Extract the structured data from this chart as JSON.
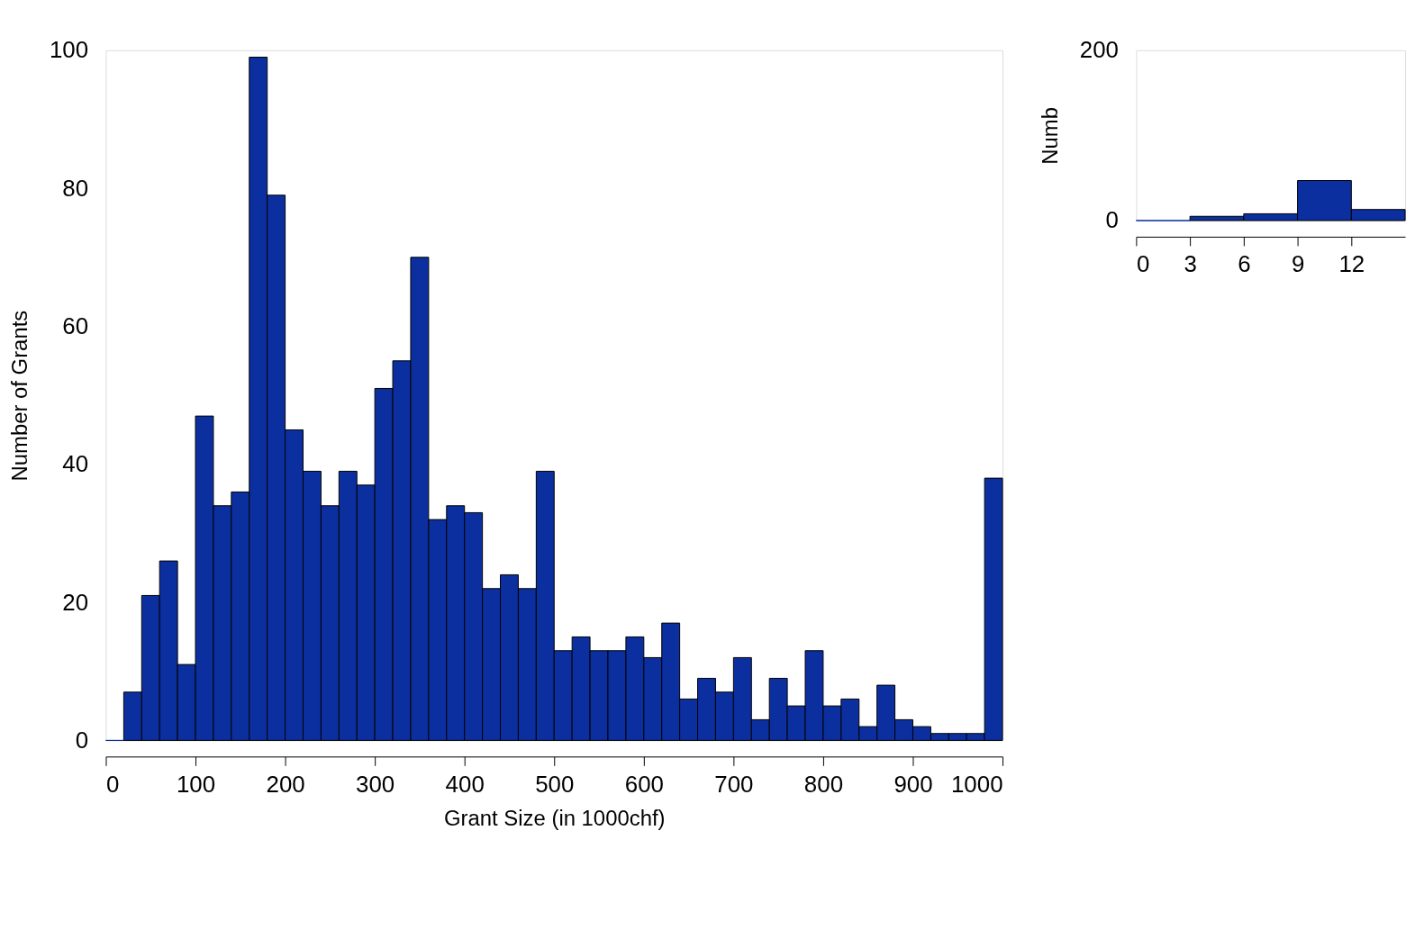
{
  "chart_data": [
    {
      "type": "histogram",
      "xlabel": "Grant Size (in 1000chf)",
      "ylabel": "Number of Grants",
      "color": "#0b2f9f",
      "bins": [
        0,
        20,
        40,
        60,
        80,
        100,
        120,
        140,
        160,
        180,
        200,
        220,
        240,
        260,
        280,
        300,
        320,
        340,
        360,
        380,
        400,
        420,
        440,
        460,
        480,
        500,
        520,
        540,
        560,
        580,
        600,
        620,
        640,
        660,
        680,
        700,
        720,
        740,
        760,
        780,
        800,
        820,
        840,
        860,
        880,
        900,
        920,
        940,
        960,
        980,
        1000
      ],
      "values": [
        0,
        7,
        21,
        26,
        11,
        47,
        34,
        36,
        99,
        79,
        45,
        39,
        34,
        39,
        37,
        51,
        55,
        70,
        32,
        34,
        33,
        22,
        24,
        22,
        39,
        13,
        15,
        13,
        13,
        15,
        12,
        17,
        6,
        9,
        7,
        12,
        3,
        9,
        5,
        13,
        5,
        6,
        2,
        8,
        3,
        2,
        1,
        1,
        1,
        38
      ],
      "xlim": [
        0,
        1000
      ],
      "xticks": [
        0,
        100,
        200,
        300,
        400,
        500,
        600,
        700,
        800,
        900,
        1000
      ],
      "ylim": [
        0,
        100
      ],
      "yticks": [
        0,
        20,
        40,
        60,
        80,
        100
      ],
      "grid": false
    },
    {
      "type": "histogram",
      "ylabel": "Numb",
      "color": "#0b2f9f",
      "bins": [
        0,
        3,
        6,
        9,
        12,
        15
      ],
      "values": [
        0,
        5,
        8,
        47,
        13
      ],
      "xlim": [
        0,
        15
      ],
      "xticks": [
        0,
        3,
        6,
        9,
        12
      ],
      "ylim": [
        0,
        200
      ],
      "yticks": [
        0,
        200
      ],
      "grid": false
    }
  ]
}
